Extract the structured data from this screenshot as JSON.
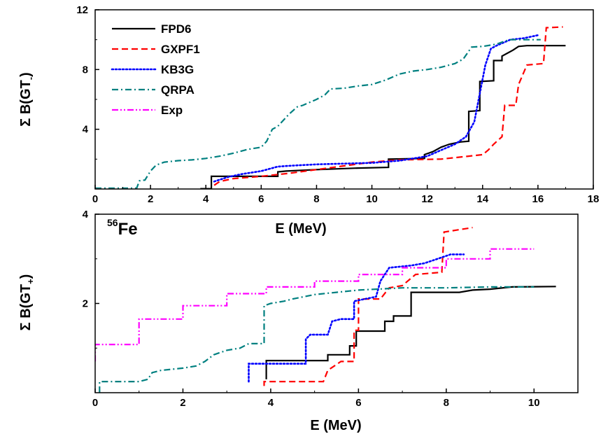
{
  "isotope": {
    "mass": "56",
    "symbol": "Fe"
  },
  "legend": [
    {
      "name": "FPD6",
      "color": "#000000",
      "dash": "solid"
    },
    {
      "name": "GXPF1",
      "color": "#ff0000",
      "dash": "dash"
    },
    {
      "name": "KB3G",
      "color": "#0000ff",
      "dash": "dot"
    },
    {
      "name": "QRPA",
      "color": "#008080",
      "dash": "dashdot"
    },
    {
      "name": "Exp",
      "color": "#ff00ff",
      "dash": "dashdotdot"
    }
  ],
  "chart_data": [
    {
      "type": "line",
      "step": true,
      "xlabel": "E (MeV)",
      "ylabel": {
        "prefix": "Σ B(GT",
        "subscript": "-",
        "suffix": ")"
      },
      "xlim": [
        0,
        18
      ],
      "ylim": [
        0,
        12
      ],
      "xticks": [
        0,
        2,
        4,
        6,
        8,
        10,
        12,
        14,
        16,
        18
      ],
      "yticks": [
        4,
        8,
        12
      ],
      "series": [
        {
          "name": "FPD6",
          "points": [
            [
              3.8,
              0.02
            ],
            [
              4.2,
              0.02
            ],
            [
              4.2,
              0.85
            ],
            [
              6.6,
              0.85
            ],
            [
              6.6,
              1.15
            ],
            [
              6.9,
              1.2
            ],
            [
              8.0,
              1.3
            ],
            [
              9.5,
              1.4
            ],
            [
              10.6,
              1.45
            ],
            [
              10.6,
              2.0
            ],
            [
              11.9,
              2.05
            ],
            [
              11.9,
              2.3
            ],
            [
              12.2,
              2.5
            ],
            [
              12.5,
              2.8
            ],
            [
              12.8,
              3.0
            ],
            [
              13.2,
              3.15
            ],
            [
              13.5,
              3.2
            ],
            [
              13.5,
              5.2
            ],
            [
              13.9,
              5.25
            ],
            [
              13.9,
              7.2
            ],
            [
              14.4,
              7.25
            ],
            [
              14.4,
              8.6
            ],
            [
              14.7,
              8.6
            ],
            [
              14.7,
              8.9
            ],
            [
              14.9,
              9.1
            ],
            [
              15.1,
              9.3
            ],
            [
              15.3,
              9.55
            ],
            [
              15.6,
              9.6
            ],
            [
              17.0,
              9.6
            ]
          ]
        },
        {
          "name": "GXPF1",
          "points": [
            [
              4.3,
              0.25
            ],
            [
              4.5,
              0.5
            ],
            [
              5.0,
              0.7
            ],
            [
              6.0,
              0.85
            ],
            [
              7.0,
              1.05
            ],
            [
              8.0,
              1.3
            ],
            [
              9.0,
              1.55
            ],
            [
              10.0,
              1.8
            ],
            [
              11.0,
              1.95
            ],
            [
              12.5,
              2.0
            ],
            [
              13.0,
              2.1
            ],
            [
              13.5,
              2.2
            ],
            [
              14.0,
              2.3
            ],
            [
              14.2,
              2.6
            ],
            [
              14.4,
              3.0
            ],
            [
              14.7,
              3.5
            ],
            [
              14.8,
              5.6
            ],
            [
              15.2,
              5.6
            ],
            [
              15.3,
              7.0
            ],
            [
              15.6,
              8.3
            ],
            [
              16.2,
              8.4
            ],
            [
              16.3,
              10.8
            ],
            [
              16.9,
              10.85
            ]
          ]
        },
        {
          "name": "KB3G",
          "points": [
            [
              4.3,
              0.5
            ],
            [
              4.8,
              0.8
            ],
            [
              5.3,
              1.0
            ],
            [
              6.0,
              1.2
            ],
            [
              6.6,
              1.5
            ],
            [
              7.0,
              1.55
            ],
            [
              8.0,
              1.65
            ],
            [
              9.0,
              1.7
            ],
            [
              10.0,
              1.75
            ],
            [
              11.0,
              1.9
            ],
            [
              12.0,
              2.2
            ],
            [
              12.5,
              2.6
            ],
            [
              13.0,
              3.0
            ],
            [
              13.4,
              3.5
            ],
            [
              13.7,
              4.5
            ],
            [
              13.9,
              6.4
            ],
            [
              14.1,
              8.3
            ],
            [
              14.3,
              9.4
            ],
            [
              14.5,
              9.6
            ],
            [
              15.0,
              10.0
            ],
            [
              15.5,
              10.1
            ],
            [
              16.0,
              10.3
            ]
          ]
        },
        {
          "name": "QRPA",
          "points": [
            [
              0.0,
              0.05
            ],
            [
              1.5,
              0.05
            ],
            [
              1.6,
              0.55
            ],
            [
              1.8,
              0.6
            ],
            [
              2.0,
              1.2
            ],
            [
              2.2,
              1.6
            ],
            [
              2.5,
              1.8
            ],
            [
              3.0,
              1.9
            ],
            [
              3.5,
              1.95
            ],
            [
              4.0,
              2.05
            ],
            [
              4.5,
              2.2
            ],
            [
              5.0,
              2.4
            ],
            [
              5.5,
              2.65
            ],
            [
              6.0,
              2.8
            ],
            [
              6.2,
              3.2
            ],
            [
              6.4,
              4.0
            ],
            [
              6.6,
              4.2
            ],
            [
              7.0,
              5.0
            ],
            [
              7.3,
              5.5
            ],
            [
              7.5,
              5.6
            ],
            [
              8.0,
              6.0
            ],
            [
              8.3,
              6.3
            ],
            [
              8.5,
              6.7
            ],
            [
              9.0,
              6.75
            ],
            [
              9.5,
              6.9
            ],
            [
              10.0,
              7.0
            ],
            [
              10.5,
              7.3
            ],
            [
              11.0,
              7.7
            ],
            [
              11.5,
              7.9
            ],
            [
              12.0,
              8.0
            ],
            [
              12.5,
              8.15
            ],
            [
              13.0,
              8.4
            ],
            [
              13.3,
              8.7
            ],
            [
              13.6,
              9.5
            ],
            [
              14.0,
              9.55
            ],
            [
              14.5,
              9.7
            ],
            [
              14.8,
              9.9
            ],
            [
              15.0,
              10.0
            ],
            [
              16.1,
              10.0
            ]
          ]
        }
      ]
    },
    {
      "type": "line",
      "step": true,
      "xlabel": "E (MeV)",
      "ylabel": {
        "prefix": "Σ B(GT",
        "subscript": "+",
        "suffix": ")"
      },
      "xlim": [
        0,
        11
      ],
      "ylim": [
        0,
        4
      ],
      "xticks": [
        0,
        2,
        4,
        6,
        8,
        10
      ],
      "yticks": [
        2,
        4
      ],
      "series": [
        {
          "name": "FPD6",
          "points": [
            [
              3.9,
              0.3
            ],
            [
              3.9,
              0.72
            ],
            [
              5.3,
              0.72
            ],
            [
              5.3,
              0.85
            ],
            [
              5.8,
              0.85
            ],
            [
              5.8,
              1.05
            ],
            [
              5.95,
              1.05
            ],
            [
              5.95,
              1.38
            ],
            [
              6.6,
              1.38
            ],
            [
              6.6,
              1.6
            ],
            [
              6.8,
              1.6
            ],
            [
              6.8,
              1.72
            ],
            [
              7.2,
              1.72
            ],
            [
              7.2,
              2.25
            ],
            [
              8.3,
              2.25
            ],
            [
              8.6,
              2.3
            ],
            [
              9.0,
              2.32
            ],
            [
              9.5,
              2.37
            ],
            [
              10.5,
              2.38
            ]
          ]
        },
        {
          "name": "GXPF1",
          "points": [
            [
              3.85,
              0.15
            ],
            [
              3.85,
              0.25
            ],
            [
              5.2,
              0.25
            ],
            [
              5.3,
              0.5
            ],
            [
              5.6,
              0.7
            ],
            [
              5.9,
              0.7
            ],
            [
              5.9,
              1.4
            ],
            [
              6.0,
              1.4
            ],
            [
              6.0,
              2.1
            ],
            [
              6.5,
              2.1
            ],
            [
              6.7,
              2.35
            ],
            [
              7.0,
              2.4
            ],
            [
              7.3,
              2.65
            ],
            [
              7.9,
              2.7
            ],
            [
              7.95,
              3.6
            ],
            [
              8.6,
              3.7
            ]
          ]
        },
        {
          "name": "KB3G",
          "points": [
            [
              3.5,
              0.25
            ],
            [
              3.5,
              0.65
            ],
            [
              4.8,
              0.65
            ],
            [
              4.8,
              1.2
            ],
            [
              4.9,
              1.3
            ],
            [
              5.3,
              1.3
            ],
            [
              5.4,
              1.6
            ],
            [
              5.6,
              1.65
            ],
            [
              5.9,
              1.65
            ],
            [
              5.9,
              2.05
            ],
            [
              6.4,
              2.15
            ],
            [
              6.5,
              2.5
            ],
            [
              6.7,
              2.8
            ],
            [
              7.2,
              2.85
            ],
            [
              7.5,
              2.9
            ],
            [
              7.8,
              3.0
            ],
            [
              8.1,
              3.1
            ],
            [
              8.4,
              3.1
            ]
          ]
        },
        {
          "name": "QRPA",
          "points": [
            [
              0.1,
              0.0
            ],
            [
              0.1,
              0.25
            ],
            [
              1.0,
              0.25
            ],
            [
              1.2,
              0.3
            ],
            [
              1.3,
              0.45
            ],
            [
              1.5,
              0.5
            ],
            [
              2.0,
              0.55
            ],
            [
              2.3,
              0.6
            ],
            [
              2.5,
              0.7
            ],
            [
              2.7,
              0.85
            ],
            [
              3.0,
              0.95
            ],
            [
              3.3,
              1.0
            ],
            [
              3.5,
              1.1
            ],
            [
              3.85,
              1.1
            ],
            [
              3.85,
              1.95
            ],
            [
              4.0,
              2.0
            ],
            [
              4.3,
              2.05
            ],
            [
              4.5,
              2.1
            ],
            [
              5.0,
              2.2
            ],
            [
              5.5,
              2.25
            ],
            [
              6.0,
              2.3
            ],
            [
              7.0,
              2.35
            ],
            [
              8.0,
              2.35
            ],
            [
              9.0,
              2.37
            ],
            [
              10.0,
              2.37
            ]
          ]
        },
        {
          "name": "Exp",
          "points": [
            [
              0.0,
              0.7
            ],
            [
              0.0,
              1.08
            ],
            [
              1.0,
              1.08
            ],
            [
              1.0,
              1.65
            ],
            [
              2.0,
              1.65
            ],
            [
              2.0,
              1.95
            ],
            [
              3.0,
              1.95
            ],
            [
              3.0,
              2.22
            ],
            [
              3.9,
              2.22
            ],
            [
              3.9,
              2.37
            ],
            [
              5.0,
              2.37
            ],
            [
              5.0,
              2.5
            ],
            [
              6.0,
              2.5
            ],
            [
              6.0,
              2.65
            ],
            [
              7.0,
              2.65
            ],
            [
              7.0,
              2.8
            ],
            [
              8.0,
              2.8
            ],
            [
              8.0,
              3.0
            ],
            [
              9.0,
              3.0
            ],
            [
              9.0,
              3.22
            ],
            [
              10.0,
              3.22
            ]
          ]
        }
      ]
    }
  ]
}
